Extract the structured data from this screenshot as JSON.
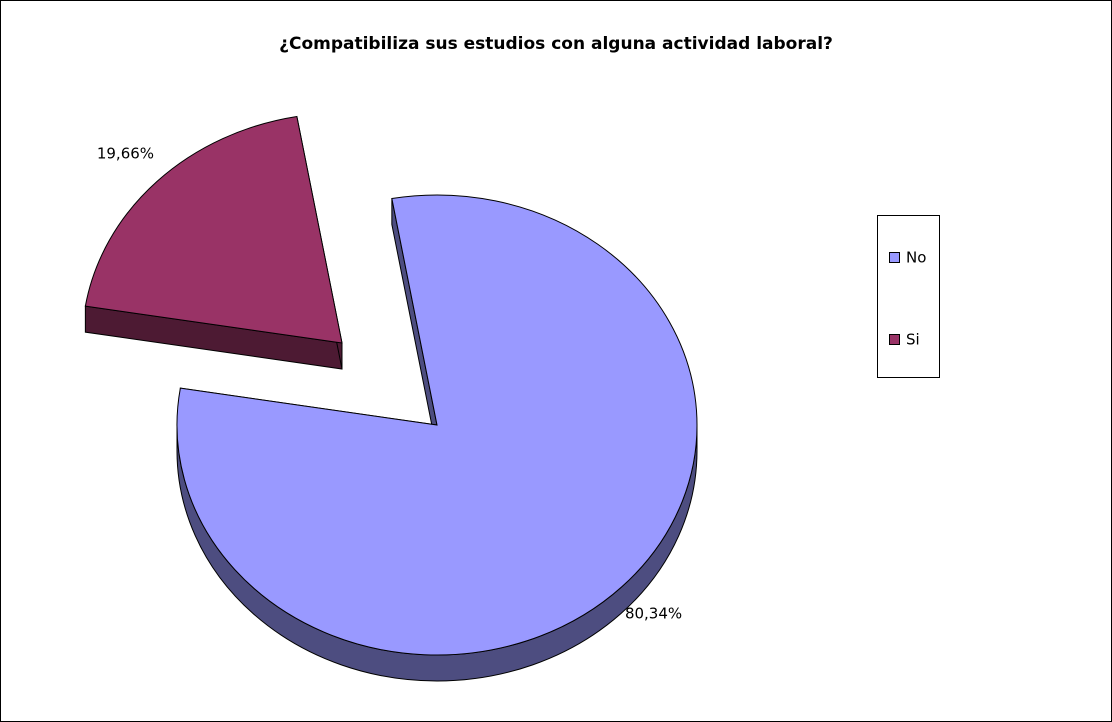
{
  "chart_data": {
    "type": "pie",
    "title": "¿Compatibiliza sus estudios con alguna actividad laboral?",
    "categories": [
      "No",
      "Si"
    ],
    "values": [
      80.34,
      19.66
    ],
    "value_labels": [
      "80,34%",
      "19,66%"
    ],
    "colors": [
      "#9999ff",
      "#993366"
    ],
    "legend": "right",
    "explode": [
      false,
      true
    ]
  }
}
